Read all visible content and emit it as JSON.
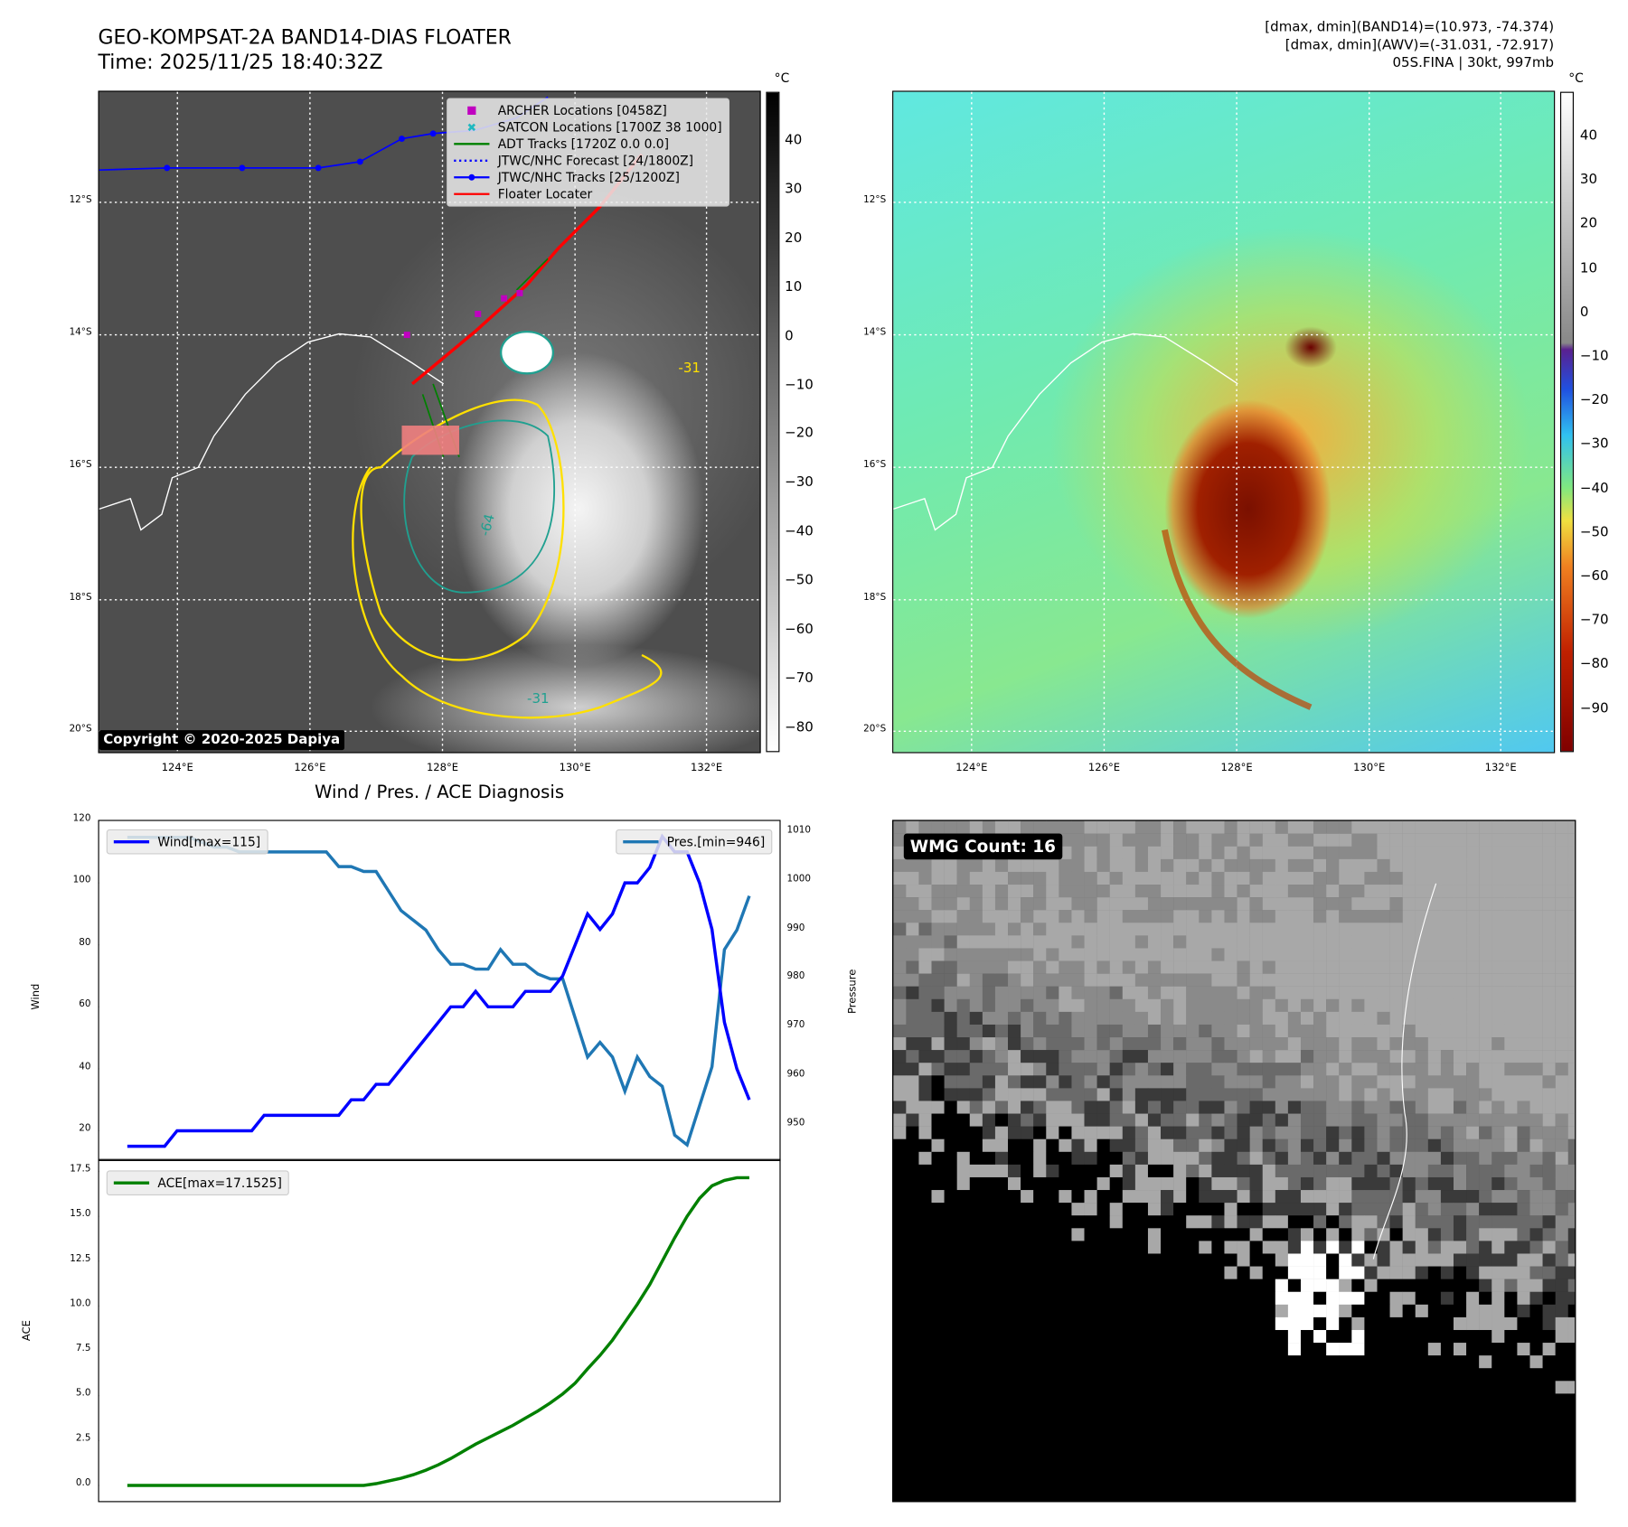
{
  "header": {
    "title_line1": "GEO-KOMPSAT-2A BAND14-DIAS FLOATER",
    "title_line2": "Time: 2025/11/25 18:40:32Z",
    "info_line1": "[dmax, dmin](BAND14)=(10.973, -74.374)",
    "info_line2": "[dmax, dmin](AWV)=(-31.031, -72.917)",
    "info_line3": "05S.FINA | 30kt, 997mb"
  },
  "map": {
    "lat_labels": [
      "12°S",
      "14°S",
      "16°S",
      "18°S",
      "20°S"
    ],
    "lon_labels": [
      "124°E",
      "126°E",
      "128°E",
      "130°E",
      "132°E"
    ],
    "copyright": "Copyright © 2020-2025 Dapiya",
    "contour_labels": [
      "-31",
      "-64",
      "-31",
      "-64"
    ],
    "legend": [
      {
        "label": "ARCHER Locations [0458Z]",
        "color": "#c000c0",
        "icon": "square-marker"
      },
      {
        "label": "SATCON Locations [1700Z 38 1000]",
        "color": "#20b8c0",
        "icon": "x-marker"
      },
      {
        "label": "ADT Tracks [1720Z 0.0 0.0]",
        "color": "#008000",
        "icon": "solid-line"
      },
      {
        "label": "JTWC/NHC Forecast [24/1800Z]",
        "color": "#0000ff",
        "icon": "dotted-line"
      },
      {
        "label": "JTWC/NHC Tracks [25/1200Z]",
        "color": "#0000ff",
        "icon": "line-dot"
      },
      {
        "label": "Floater Locater",
        "color": "#ff0000",
        "icon": "solid-line"
      }
    ]
  },
  "colorbars": {
    "unit": "°C",
    "left_ticks": [
      "40",
      "30",
      "20",
      "10",
      "0",
      "−10",
      "−20",
      "−30",
      "−40",
      "−50",
      "−60",
      "−70",
      "−80"
    ],
    "right_ticks": [
      "40",
      "30",
      "20",
      "10",
      "0",
      "−10",
      "−20",
      "−30",
      "−40",
      "−50",
      "−60",
      "−70",
      "−80",
      "−90"
    ]
  },
  "wmg": {
    "label": "WMG Count: 16"
  },
  "chart_data": [
    {
      "type": "line",
      "title": "Wind / Pres. / ACE Diagnosis",
      "ylabel": "Wind",
      "y2label": "Pressure",
      "ylim": [
        15,
        120
      ],
      "y2lim": [
        944,
        1012
      ],
      "yticks": [
        20,
        40,
        60,
        80,
        100,
        120
      ],
      "y2ticks": [
        950,
        960,
        970,
        980,
        990,
        1000,
        1010
      ],
      "series": [
        {
          "name": "Wind[max=115]",
          "color": "#0000ff",
          "axis": "left",
          "legend": "top-left",
          "values": [
            15,
            15,
            15,
            15,
            20,
            20,
            20,
            20,
            20,
            20,
            20,
            25,
            25,
            25,
            25,
            25,
            25,
            25,
            30,
            30,
            35,
            35,
            40,
            45,
            50,
            55,
            60,
            60,
            65,
            60,
            60,
            60,
            65,
            65,
            65,
            70,
            80,
            90,
            85,
            90,
            100,
            100,
            105,
            115,
            110,
            110,
            100,
            85,
            55,
            40,
            30
          ]
        },
        {
          "name": "Pres.[min=946]",
          "color": "#1f77b4",
          "axis": "right",
          "legend": "top-right",
          "values": [
            1009,
            1009,
            1009,
            1009,
            1009,
            1009,
            1008,
            1007,
            1007,
            1006,
            1006,
            1006,
            1006,
            1006,
            1006,
            1006,
            1006,
            1003,
            1003,
            1002,
            1002,
            998,
            994,
            992,
            990,
            986,
            983,
            983,
            982,
            982,
            986,
            983,
            983,
            981,
            980,
            980,
            972,
            964,
            967,
            964,
            957,
            964,
            960,
            958,
            948,
            946,
            954,
            962,
            986,
            990,
            997
          ]
        }
      ]
    },
    {
      "type": "line",
      "ylabel": "ACE",
      "ylim": [
        -0.8,
        17.9
      ],
      "yticks": [
        "0.0",
        "2.5",
        "5.0",
        "7.5",
        "10.0",
        "12.5",
        "15.0",
        "17.5"
      ],
      "series": [
        {
          "name": "ACE[max=17.1525]",
          "color": "#008000",
          "legend": "top-left",
          "values": [
            0,
            0,
            0,
            0,
            0,
            0,
            0,
            0,
            0,
            0,
            0,
            0,
            0,
            0,
            0,
            0,
            0,
            0,
            0,
            0,
            0.1,
            0.25,
            0.4,
            0.6,
            0.85,
            1.15,
            1.5,
            1.9,
            2.3,
            2.65,
            3.0,
            3.35,
            3.75,
            4.15,
            4.6,
            5.1,
            5.7,
            6.5,
            7.25,
            8.1,
            9.1,
            10.1,
            11.2,
            12.5,
            13.8,
            15.0,
            16.0,
            16.7,
            17.0,
            17.15,
            17.15
          ]
        }
      ]
    }
  ]
}
